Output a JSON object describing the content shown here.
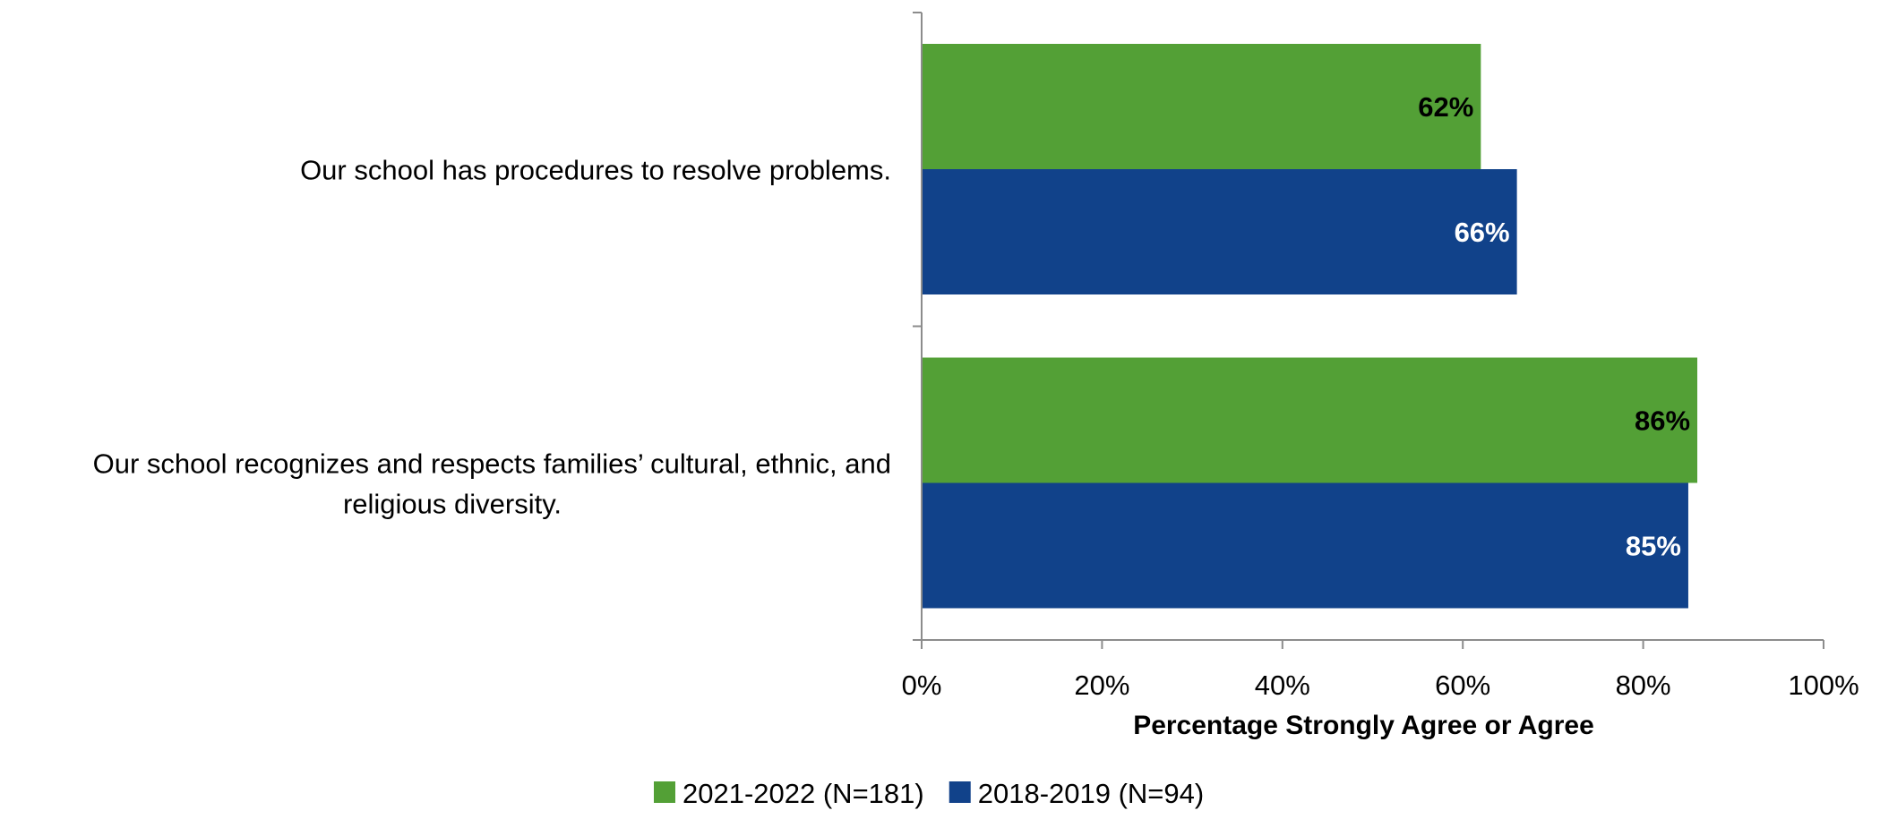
{
  "chart_data": {
    "type": "bar",
    "orientation": "horizontal",
    "categories": [
      [
        "Our school has procedures to resolve problems."
      ],
      [
        "Our school recognizes and respects families’ cultural, ethnic, and",
        "religious diversity."
      ]
    ],
    "series": [
      {
        "name": "2021-2022 (N=181)",
        "color": "#53a036",
        "label_color": "#000000",
        "values": [
          62,
          86
        ],
        "labels": [
          "62%",
          "86%"
        ]
      },
      {
        "name": "2018-2019 (N=94)",
        "color": "#11428a",
        "label_color": "#ffffff",
        "values": [
          66,
          85
        ],
        "labels": [
          "66%",
          "85%"
        ]
      }
    ],
    "xlim": [
      0,
      100
    ],
    "xticks": [
      "0%",
      "20%",
      "40%",
      "60%",
      "80%",
      "100%"
    ],
    "xlabel": "Percentage Strongly Agree or Agree",
    "legend_position": "bottom",
    "grid": false
  }
}
